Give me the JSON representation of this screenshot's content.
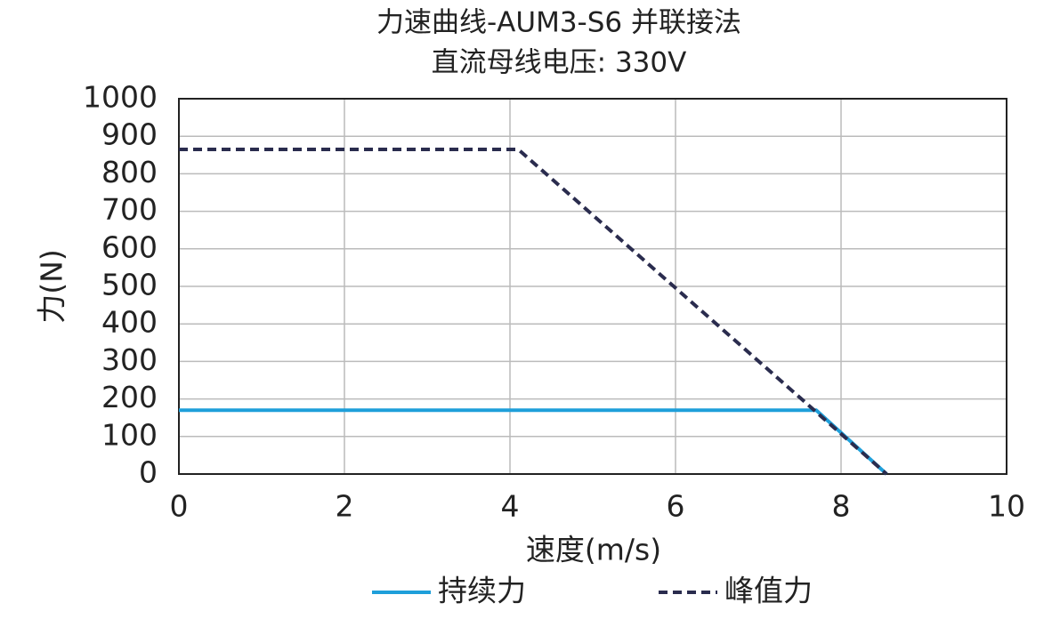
{
  "chart_data": {
    "type": "line",
    "title": "力速曲线-AUM3-S6 并联接法",
    "subtitle": "直流母线电压: 330V",
    "x_label": "速度(m/s)",
    "y_label": "力(N)",
    "xlim": [
      0,
      10
    ],
    "xticks": [
      0,
      2,
      4,
      6,
      8,
      10
    ],
    "ylim": [
      0,
      1000
    ],
    "yticks": [
      0,
      100,
      200,
      300,
      400,
      500,
      600,
      700,
      800,
      900,
      1000
    ],
    "grid": true,
    "legend": "bottom",
    "series": [
      {
        "name": "持续力",
        "color": "#1e9fda",
        "dash": false,
        "x": [
          0,
          7.7,
          8.55
        ],
        "values": [
          170,
          170,
          0
        ]
      },
      {
        "name": "峰值力",
        "color": "#2a2c4e",
        "dash": true,
        "x": [
          0,
          4.1,
          8.55
        ],
        "values": [
          865,
          865,
          0
        ]
      }
    ]
  }
}
